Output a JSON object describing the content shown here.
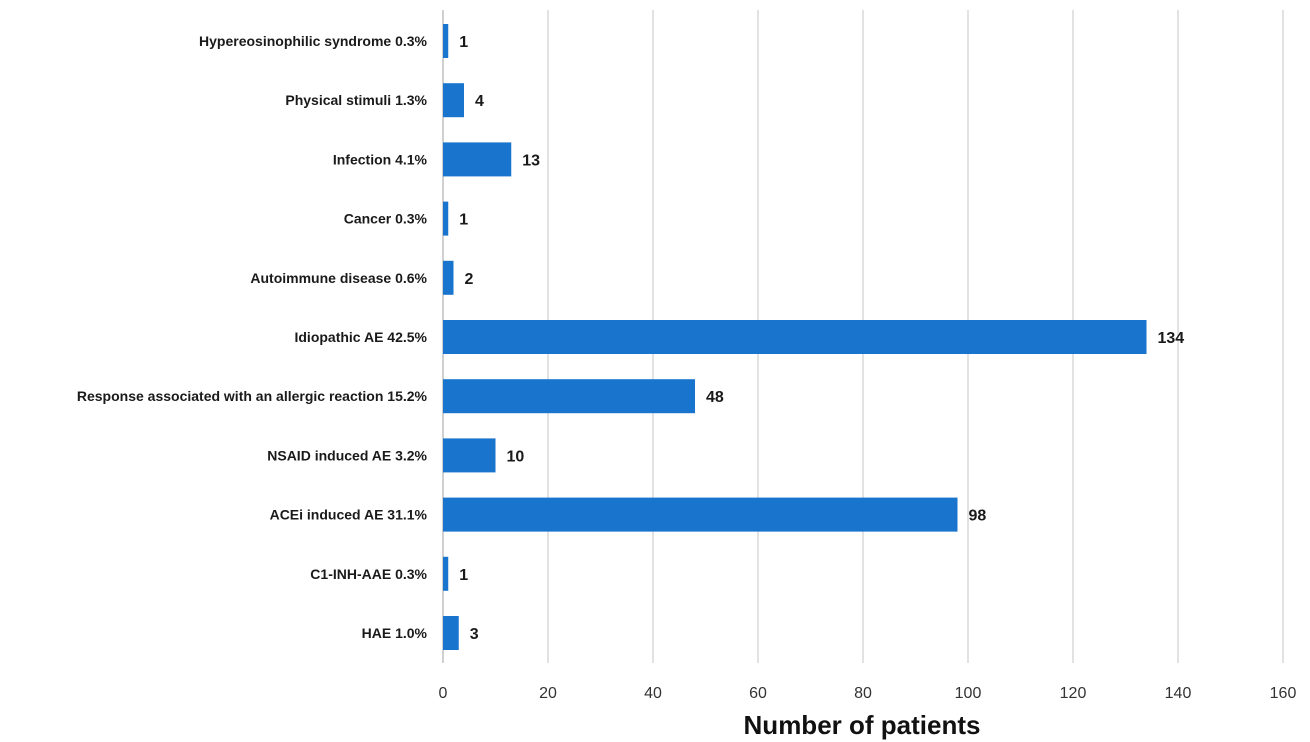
{
  "chart_data": {
    "type": "bar",
    "orientation": "horizontal",
    "categories": [
      "Hypereosinophilic syndrome 0.3%",
      "Physical stimuli 1.3%",
      "Infection 4.1%",
      "Cancer 0.3%",
      "Autoimmune disease 0.6%",
      "Idiopathic AE 42.5%",
      "Response associated with an allergic reaction 15.2%",
      "NSAID induced AE 3.2%",
      "ACEi induced AE 31.1%",
      "C1-INH-AAE 0.3%",
      "HAE 1.0%"
    ],
    "values": [
      1,
      4,
      13,
      1,
      2,
      134,
      48,
      10,
      98,
      1,
      3
    ],
    "data_labels": [
      "1",
      "4",
      "13",
      "1",
      "2",
      "134",
      "48",
      "10",
      "98",
      "1",
      "3"
    ],
    "xlabel": "Number of patients",
    "ylabel": "",
    "title": "",
    "xlim": [
      0,
      160
    ],
    "xticks": [
      "0",
      "20",
      "40",
      "60",
      "80",
      "100",
      "120",
      "140",
      "160"
    ],
    "grid": "vertical",
    "legend": "none",
    "bar_color": "#1874cd"
  }
}
